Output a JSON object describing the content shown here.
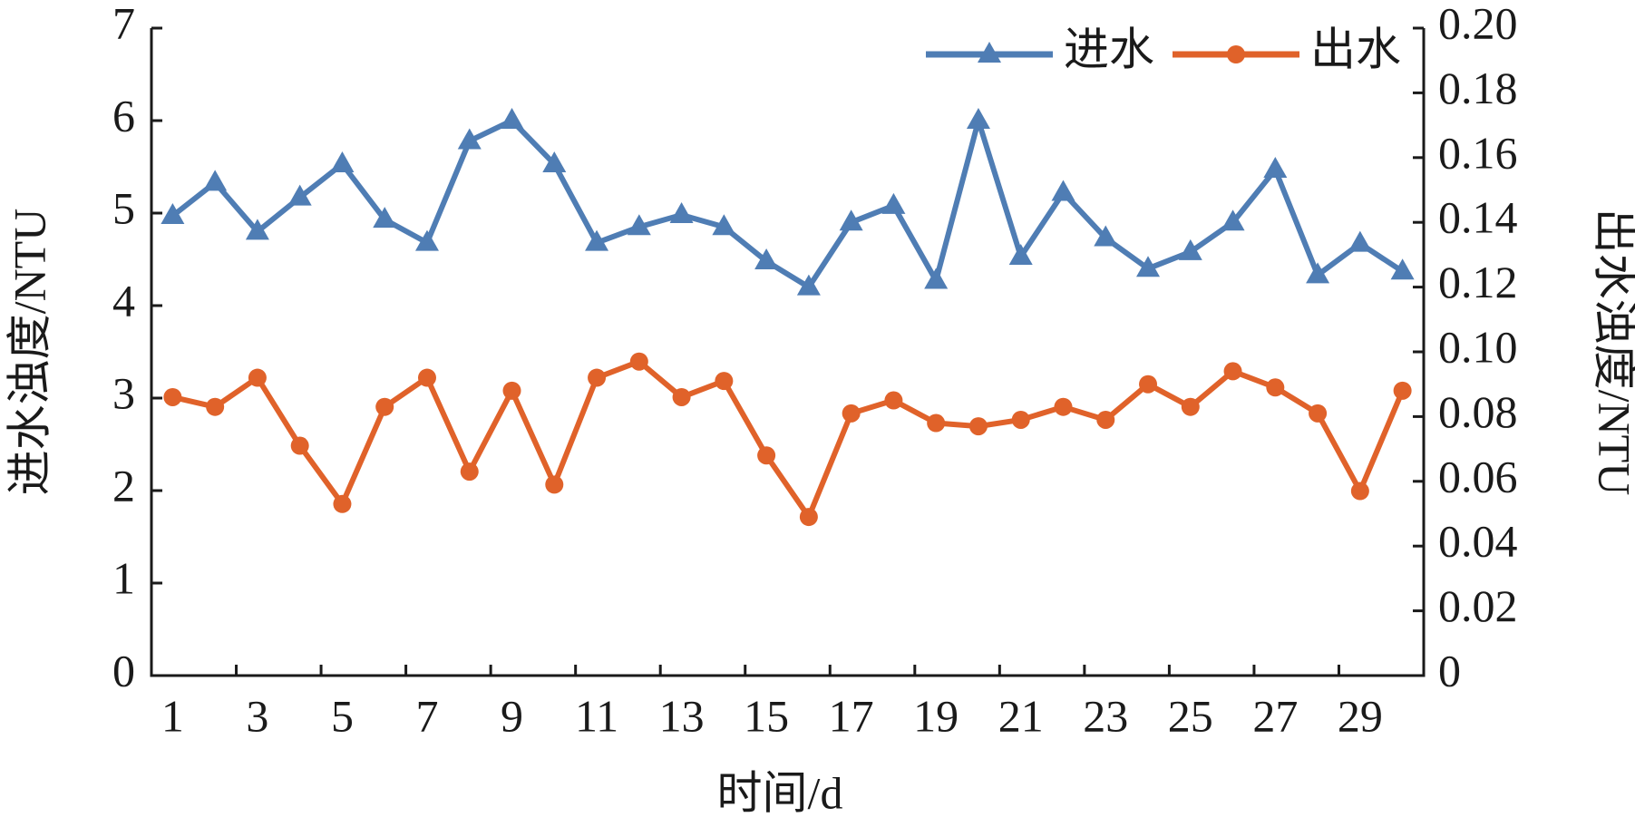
{
  "chart_data": {
    "type": "line",
    "categories": [
      1,
      null,
      3,
      null,
      5,
      null,
      7,
      null,
      9,
      null,
      11,
      null,
      13,
      null,
      15,
      null,
      17,
      null,
      19,
      null,
      21,
      null,
      23,
      null,
      25,
      null,
      27,
      null,
      29,
      null
    ],
    "xlabel": "时间/d",
    "ylabel": "进水浊度/NTU",
    "y2label": "出水浊度/NTU",
    "ylim": [
      0,
      7
    ],
    "yticks": [
      0,
      1,
      2,
      3,
      4,
      5,
      6,
      7
    ],
    "y2lim": [
      0,
      0.2
    ],
    "y2ticks": [
      0,
      0.02,
      0.04,
      0.06,
      0.08,
      {
        "value": 0.1,
        "label": "0.10"
      },
      0.12,
      0.14,
      0.16,
      0.18,
      {
        "value": 0.2,
        "label": "0.20"
      }
    ],
    "legend": "upper right",
    "series": [
      {
        "name": "进水",
        "color": "#4f7db4",
        "marker": "triangle",
        "values": [
          4.97,
          5.33,
          4.8,
          5.17,
          5.53,
          4.93,
          4.68,
          5.78,
          6.0,
          5.53,
          4.68,
          4.85,
          4.98,
          4.85,
          4.48,
          4.2,
          4.9,
          5.08,
          4.27,
          6.0,
          4.53,
          5.22,
          4.73,
          4.4,
          4.58,
          4.9,
          5.47,
          4.33,
          4.67,
          4.37
        ]
      },
      {
        "name": "出水",
        "color": "#e0622a",
        "marker": "circle",
        "axis": "y2",
        "values": [
          0.086,
          0.083,
          0.092,
          0.071,
          0.053,
          0.083,
          0.092,
          0.063,
          0.088,
          0.059,
          0.092,
          0.097,
          0.086,
          0.091,
          0.068,
          0.049,
          0.081,
          0.085,
          0.078,
          0.077,
          0.079,
          0.083,
          0.079,
          0.09,
          0.083,
          0.094,
          0.089,
          0.081,
          0.057,
          0.088
        ]
      }
    ]
  }
}
